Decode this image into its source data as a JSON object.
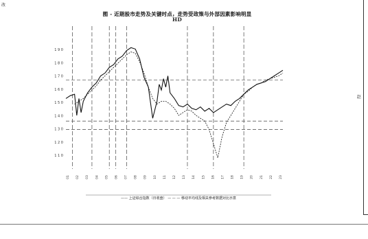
{
  "page": {
    "corner_mark": "改",
    "side_mark": "赵"
  },
  "chart_data": {
    "type": "line",
    "title_line1": "图 - 近期股市走势及关键时点，走势受政策与外部因素影响明显",
    "title_line2": "HD",
    "yticks": [
      "1 9 0",
      "1 8 0",
      "1 7 0",
      "1 6 0",
      "1 5 0",
      "1 4 0",
      "1 3 0",
      "1 2 0",
      "1 1 0"
    ],
    "xticks": [
      "01",
      "02",
      "03",
      "04",
      "05",
      "06",
      "07",
      "08",
      "09",
      "10",
      "11",
      "12",
      "13",
      "14",
      "15",
      "16",
      "17",
      "18",
      "19",
      "20",
      "21",
      "22",
      "23"
    ],
    "legend_text": "—— 上证综合指数（日收盘） — — — 移动平均线及相关参考数据对比示意",
    "y_range": [
      1.05,
      1.95
    ],
    "ref_lines_y": [
      1.65,
      1.36,
      1.3
    ],
    "event_x": [
      3,
      12,
      20,
      23,
      28,
      56,
      68,
      82
    ],
    "series": [
      {
        "style": "solid",
        "x": [
          0,
          2,
          4,
          5,
          6,
          7,
          8,
          9,
          10,
          12,
          14,
          16,
          18,
          20,
          22,
          24,
          26,
          28,
          30,
          32,
          34,
          36,
          38,
          40,
          42,
          43,
          44,
          45,
          46,
          47,
          48,
          50,
          52,
          54,
          56,
          58,
          60,
          62,
          64,
          66,
          68,
          70,
          72,
          74,
          76,
          78,
          80,
          82,
          84,
          86,
          88,
          90,
          92,
          94,
          96,
          98,
          100
        ],
        "y": [
          1.52,
          1.54,
          1.55,
          1.4,
          1.52,
          1.42,
          1.5,
          1.53,
          1.56,
          1.6,
          1.63,
          1.68,
          1.7,
          1.74,
          1.76,
          1.8,
          1.82,
          1.86,
          1.88,
          1.87,
          1.8,
          1.67,
          1.6,
          1.38,
          1.5,
          1.62,
          1.58,
          1.66,
          1.6,
          1.68,
          1.56,
          1.52,
          1.47,
          1.46,
          1.48,
          1.45,
          1.44,
          1.46,
          1.43,
          1.45,
          1.42,
          1.44,
          1.46,
          1.48,
          1.47,
          1.5,
          1.52,
          1.55,
          1.58,
          1.6,
          1.62,
          1.63,
          1.64,
          1.66,
          1.68,
          1.7,
          1.72
        ]
      },
      {
        "style": "dashed",
        "x": [
          4,
          6,
          8,
          10,
          12,
          14,
          16,
          18,
          20,
          22,
          24,
          26,
          28,
          30,
          32,
          34,
          36,
          38,
          40,
          42,
          44,
          46,
          48,
          50,
          52,
          54,
          56,
          58,
          60,
          62,
          64,
          66,
          68,
          70,
          72,
          74,
          76,
          78,
          80,
          82,
          84,
          86,
          88,
          90,
          92,
          94,
          96,
          98,
          100
        ],
        "y": [
          1.48,
          1.5,
          1.52,
          1.55,
          1.58,
          1.61,
          1.65,
          1.68,
          1.71,
          1.74,
          1.77,
          1.8,
          1.83,
          1.85,
          1.84,
          1.78,
          1.7,
          1.6,
          1.52,
          1.48,
          1.5,
          1.5,
          1.48,
          1.45,
          1.4,
          1.42,
          1.44,
          1.43,
          1.4,
          1.38,
          1.36,
          1.3,
          1.2,
          1.1,
          1.25,
          1.35,
          1.4,
          1.45,
          1.5,
          1.55,
          1.57,
          1.6,
          1.62,
          1.63,
          1.65,
          1.66,
          1.67,
          1.68,
          1.7
        ]
      }
    ]
  }
}
